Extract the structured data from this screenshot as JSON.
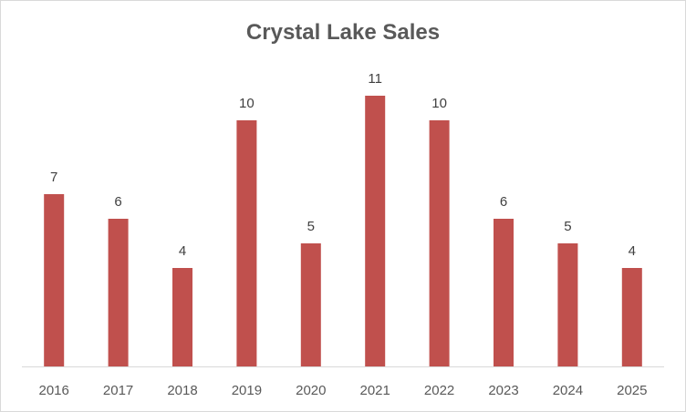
{
  "chart_data": {
    "type": "bar",
    "title": "Crystal Lake Sales",
    "xlabel": "",
    "ylabel": "",
    "categories": [
      "2016",
      "2017",
      "2018",
      "2019",
      "2020",
      "2021",
      "2022",
      "2023",
      "2024",
      "2025"
    ],
    "values": [
      7,
      6,
      4,
      10,
      5,
      11,
      10,
      6,
      5,
      4
    ],
    "ylim": [
      0,
      11
    ],
    "bar_color": "#c0504d",
    "grid": false,
    "legend": "none",
    "data_labels": true
  }
}
